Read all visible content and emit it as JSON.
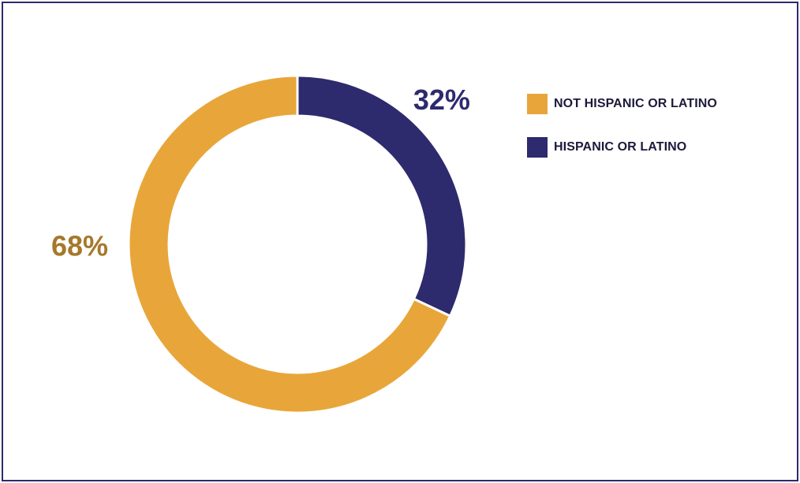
{
  "chart_data": {
    "type": "pie",
    "style": "donut",
    "categories": [
      "HISPANIC OR LATINO",
      "NOT HISPANIC OR LATINO"
    ],
    "values": [
      32,
      68
    ],
    "value_labels": [
      "32%",
      "68%"
    ],
    "colors": [
      "#2d2a6e",
      "#e8a63a"
    ],
    "label_colors": [
      "#2d2a6e",
      "#a6782a"
    ],
    "title": "",
    "legend": {
      "placement": "right",
      "items": [
        {
          "label": "NOT HISPANIC OR LATINO",
          "color": "#e8a63a"
        },
        {
          "label": "HISPANIC OR LATINO",
          "color": "#2d2a6e"
        }
      ]
    }
  }
}
